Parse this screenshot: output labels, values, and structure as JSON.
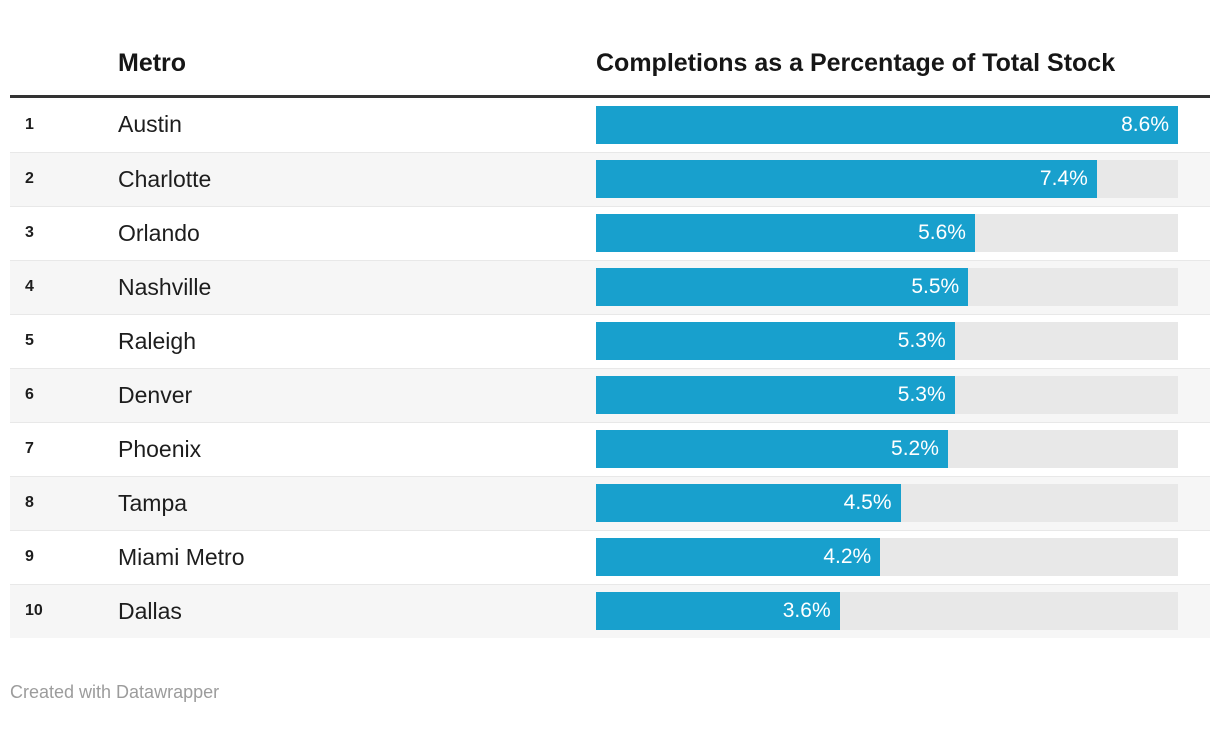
{
  "header": {
    "rank_column_label": "",
    "metro_column_label": "Metro",
    "value_column_label": "Completions as a Percentage of Total Stock"
  },
  "chart_data": {
    "type": "bar",
    "orientation": "horizontal",
    "title": "Completions as a Percentage of Total Stock",
    "categories": [
      "Austin",
      "Charlotte",
      "Orlando",
      "Nashville",
      "Raleigh",
      "Denver",
      "Phoenix",
      "Tampa",
      "Miami Metro",
      "Dallas"
    ],
    "ranks": [
      "1",
      "2",
      "3",
      "4",
      "5",
      "6",
      "7",
      "8",
      "9",
      "10"
    ],
    "values": [
      8.6,
      7.4,
      5.6,
      5.5,
      5.3,
      5.3,
      5.2,
      4.5,
      4.2,
      3.6
    ],
    "value_labels": [
      "8.6%",
      "7.4%",
      "5.6%",
      "5.5%",
      "5.3%",
      "5.3%",
      "5.2%",
      "4.5%",
      "4.2%",
      "3.6%"
    ],
    "xlim": [
      0,
      8.6
    ],
    "grid": false,
    "legend": "none",
    "bar_color": "#18a0cd",
    "bar_label_color": "#ffffff",
    "track_color": "#e8e8e8",
    "stripe_color": "#f6f6f6",
    "header_rule_color": "#333333"
  },
  "footer": {
    "attribution": "Created with Datawrapper"
  }
}
